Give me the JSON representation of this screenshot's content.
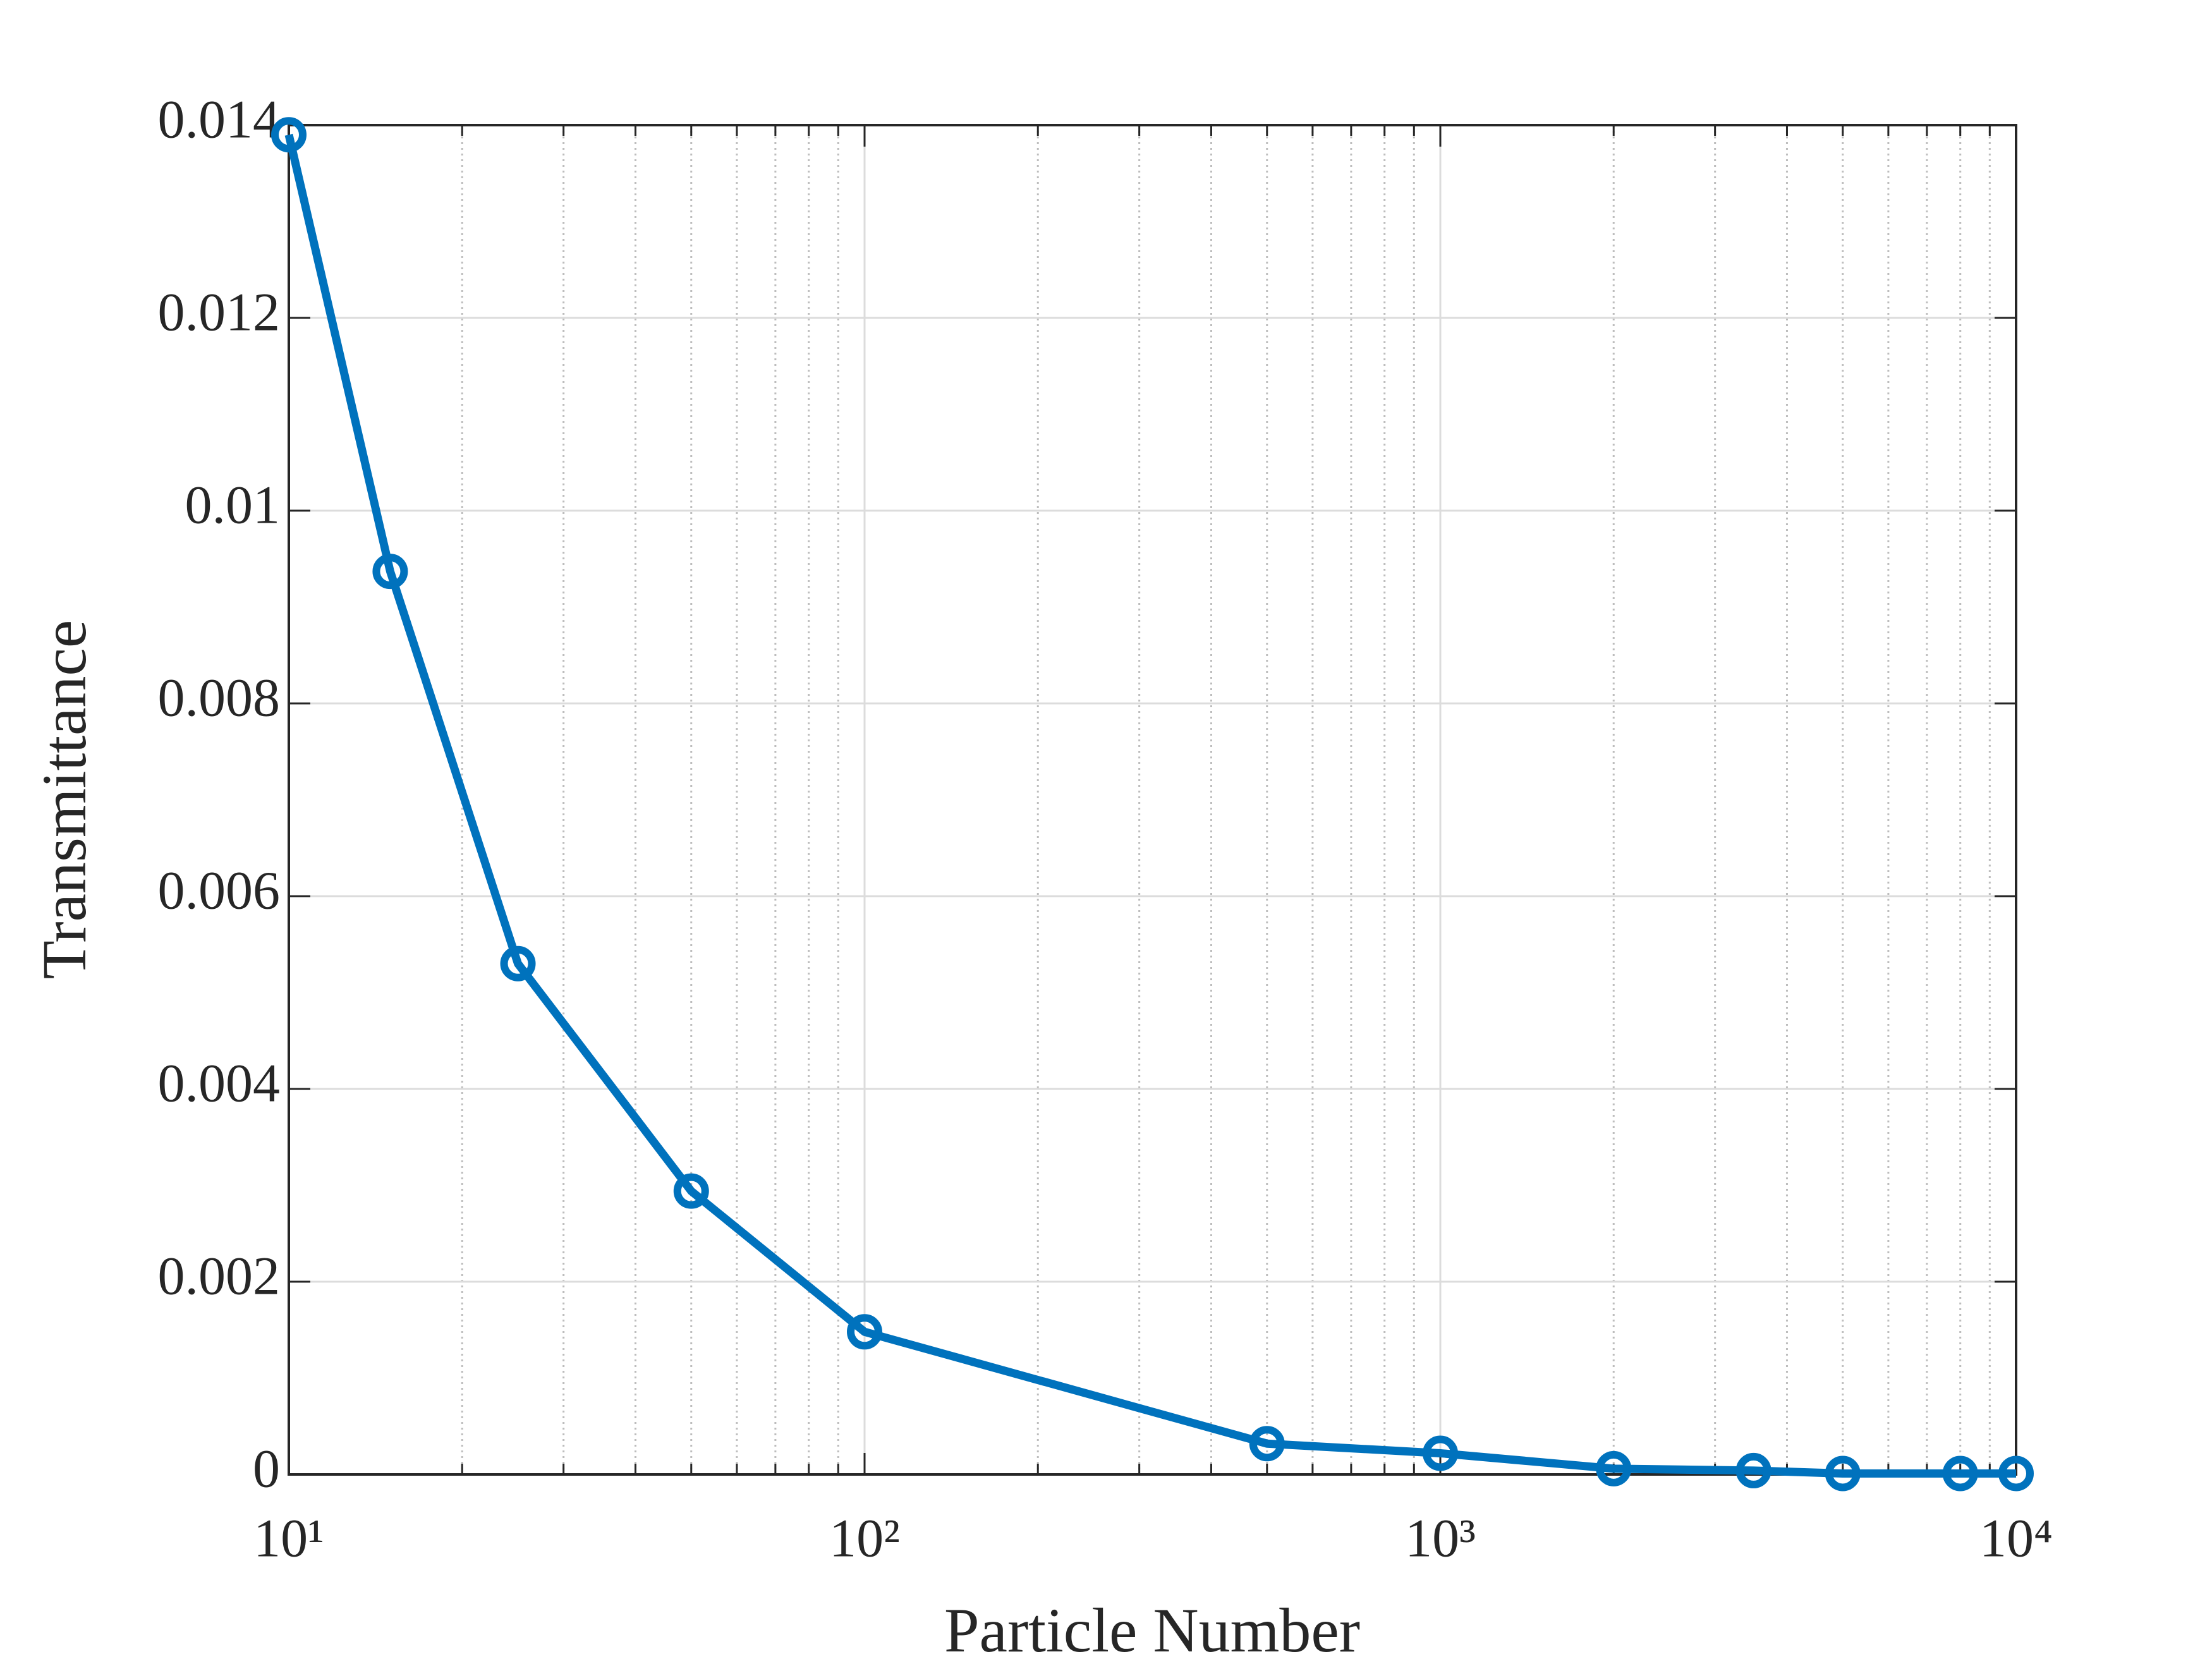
{
  "chart_data": {
    "type": "line",
    "x_label": "Particle Number",
    "y_label": "Transmittance",
    "x": [
      10,
      15,
      25,
      50,
      100,
      500,
      1000,
      2000,
      3500,
      5000,
      8000,
      10000
    ],
    "series": [
      {
        "name": "Transmittance",
        "color": "#0072bd",
        "values": [
          0.0139,
          0.00937,
          0.0053,
          0.00294,
          0.00148,
          0.00032,
          0.00022,
          6e-05,
          4e-05,
          1e-05,
          1e-05,
          1e-05
        ]
      }
    ],
    "xscale": "log",
    "xlim": [
      10,
      10000
    ],
    "xticks": [
      {
        "value": 10,
        "label": "10¹"
      },
      {
        "value": 100,
        "label": "10²"
      },
      {
        "value": 1000,
        "label": "10³"
      },
      {
        "value": 10000,
        "label": "10⁴"
      }
    ],
    "ylim": [
      0,
      0.014
    ],
    "yticks": [
      0,
      0.002,
      0.004,
      0.006,
      0.008,
      0.01,
      0.012,
      0.014
    ],
    "grid": true,
    "markers": true
  }
}
